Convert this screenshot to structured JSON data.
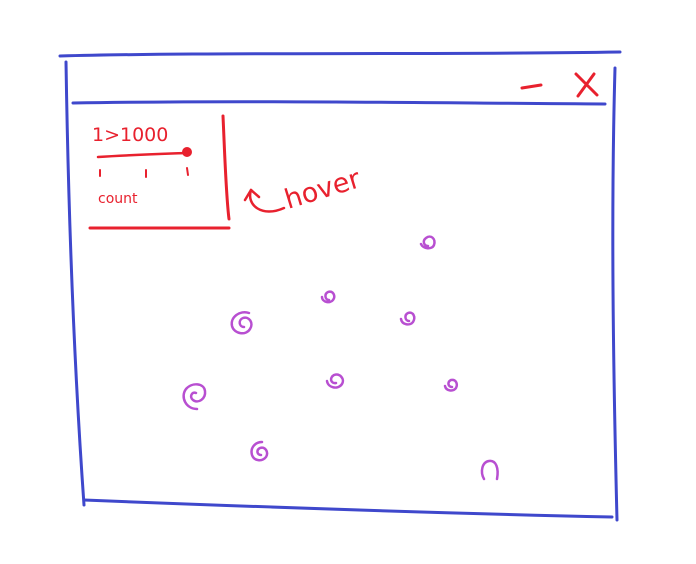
{
  "window": {
    "controls": {
      "minimize_glyph": "−",
      "close_glyph": "×"
    }
  },
  "control_panel": {
    "value": "1>1000",
    "slider_label": "count",
    "slider_level": 1.0,
    "tick_count": 3
  },
  "annotation": {
    "text": "hover",
    "icon": "curved-arrow-icon"
  },
  "canvas": {
    "particle_count": 9,
    "particle_icon": "spiral-icon"
  },
  "colors": {
    "window_frame": "#3f48cc",
    "controls": "#e8212e",
    "annotation": "#e8212e",
    "particles": "#b84fd1"
  }
}
